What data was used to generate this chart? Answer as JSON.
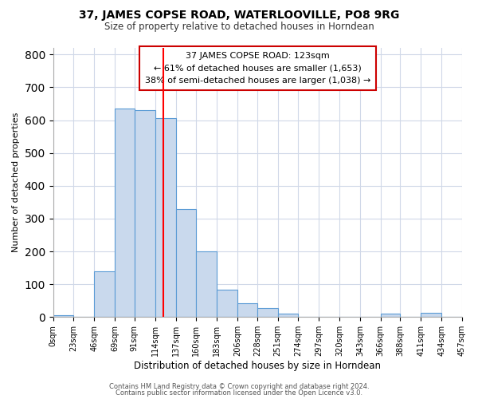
{
  "title": "37, JAMES COPSE ROAD, WATERLOOVILLE, PO8 9RG",
  "subtitle": "Size of property relative to detached houses in Horndean",
  "xlabel": "Distribution of detached houses by size in Horndean",
  "ylabel": "Number of detached properties",
  "bin_edges": [
    0,
    23,
    46,
    69,
    91,
    114,
    137,
    160,
    183,
    206,
    228,
    251,
    274,
    297,
    320,
    343,
    366,
    388,
    411,
    434,
    457
  ],
  "bin_labels": [
    "0sqm",
    "23sqm",
    "46sqm",
    "69sqm",
    "91sqm",
    "114sqm",
    "137sqm",
    "160sqm",
    "183sqm",
    "206sqm",
    "228sqm",
    "251sqm",
    "274sqm",
    "297sqm",
    "320sqm",
    "343sqm",
    "366sqm",
    "388sqm",
    "411sqm",
    "434sqm",
    "457sqm"
  ],
  "bar_heights": [
    5,
    0,
    140,
    635,
    630,
    605,
    330,
    200,
    83,
    42,
    27,
    11,
    0,
    0,
    0,
    0,
    10,
    0,
    12,
    0
  ],
  "bar_color": "#c9d9ed",
  "bar_edge_color": "#5b9bd5",
  "ref_line_x": 123,
  "ref_line_color": "red",
  "annotation_lines": [
    "37 JAMES COPSE ROAD: 123sqm",
    "← 61% of detached houses are smaller (1,653)",
    "38% of semi-detached houses are larger (1,038) →"
  ],
  "annotation_box_color": "white",
  "annotation_box_edge": "#cc0000",
  "ylim": [
    0,
    820
  ],
  "footer_lines": [
    "Contains HM Land Registry data © Crown copyright and database right 2024.",
    "Contains public sector information licensed under the Open Licence v3.0."
  ],
  "background_color": "#ffffff",
  "grid_color": "#d0d8e8"
}
